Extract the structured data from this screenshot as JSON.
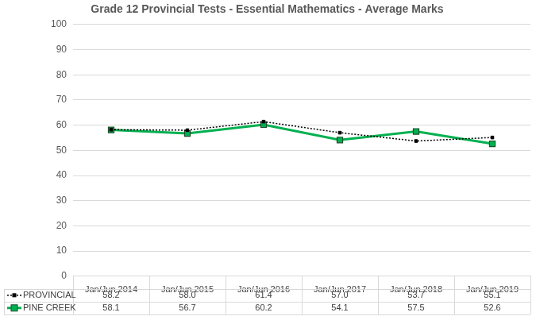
{
  "chart_data": {
    "type": "line",
    "title": "Grade 12 Provincial Tests - Essential Mathematics - Average Marks",
    "categories": [
      "Jan/Jun 2014",
      "Jan/Jun 2015",
      "Jan/Jun 2016",
      "Jan/Jun 2017",
      "Jan/Jun 2018",
      "Jan/Jun 2019"
    ],
    "series": [
      {
        "name": "PROVINCIAL",
        "color": "#000000",
        "marker": "square",
        "line_style": "dotted",
        "values": [
          58.2,
          58.0,
          61.4,
          57.0,
          53.7,
          55.1
        ],
        "value_labels": [
          "58.2",
          "58.0",
          "61.4",
          "57.0",
          "53.7",
          "55.1"
        ]
      },
      {
        "name": "PINE CREEK",
        "color": "#00b050",
        "marker": "square",
        "line_style": "solid",
        "values": [
          58.1,
          56.7,
          60.2,
          54.1,
          57.5,
          52.6
        ],
        "value_labels": [
          "58.1",
          "56.7",
          "60.2",
          "54.1",
          "57.5",
          "52.6"
        ]
      }
    ],
    "ylim": [
      0,
      100
    ],
    "yticks": [
      0,
      10,
      20,
      30,
      40,
      50,
      60,
      70,
      80,
      90,
      100
    ],
    "grid": true,
    "legend": "bottom",
    "data_labels": true
  }
}
